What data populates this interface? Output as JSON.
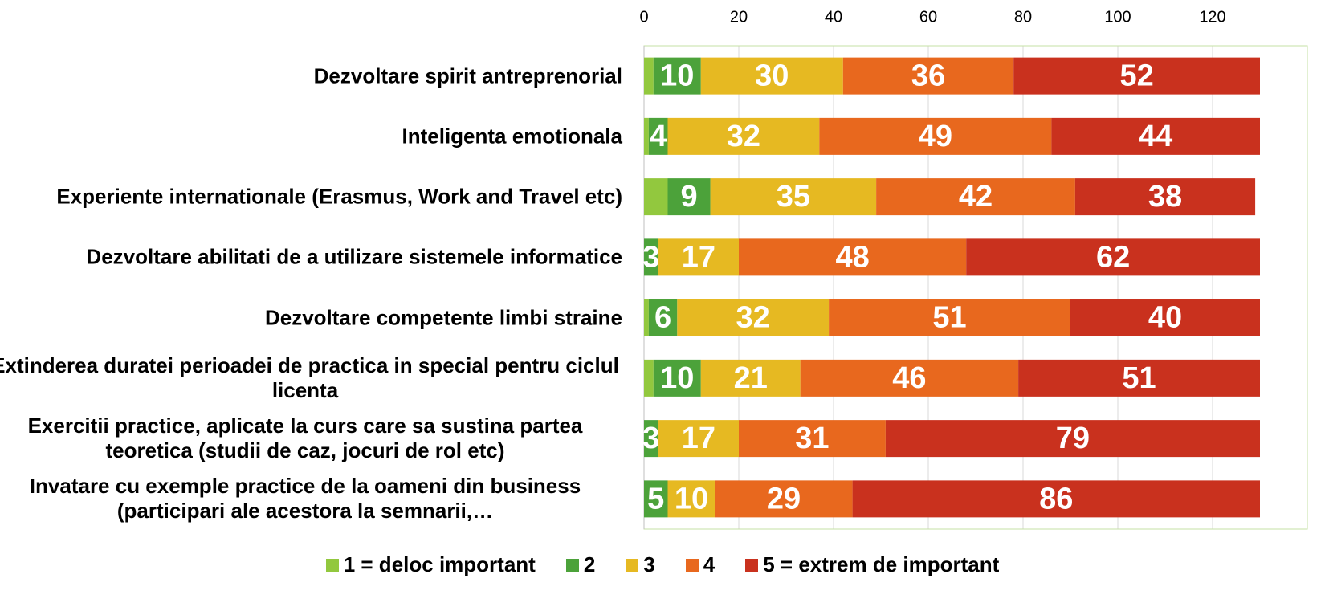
{
  "chart_data": {
    "type": "stacked_barh",
    "categories": [
      "Dezvoltare spirit antreprenorial",
      "Inteligenta emotionala",
      "Experiente internationale (Erasmus, Work and Travel etc)",
      "Dezvoltare abilitati de a utilizare sistemele informatice",
      "Dezvoltare competente limbi straine",
      "Extinderea duratei perioadei de practica in special pentru ciclul licenta",
      "Exercitii practice, aplicate la curs care sa sustina partea teoretica (studii de caz, jocuri de rol etc)",
      "Invatare cu exemple practice de la oameni din business (participari ale acestora la semnarii,…"
    ],
    "series": [
      {
        "name": "1 = deloc important",
        "color": "#92c83e",
        "values": [
          2,
          1,
          5,
          0,
          1,
          2,
          0,
          0
        ],
        "show_labels": false
      },
      {
        "name": "2",
        "color": "#4ca23a",
        "values": [
          10,
          4,
          9,
          3,
          6,
          10,
          3,
          5
        ],
        "show_labels": true
      },
      {
        "name": "3",
        "color": "#e6b922",
        "values": [
          30,
          32,
          35,
          17,
          32,
          21,
          17,
          10
        ],
        "show_labels": true
      },
      {
        "name": "4",
        "color": "#e8681e",
        "values": [
          36,
          49,
          42,
          48,
          51,
          46,
          31,
          29
        ],
        "show_labels": true
      },
      {
        "name": "5 = extrem de important",
        "color": "#c9311e",
        "values": [
          52,
          44,
          38,
          62,
          40,
          51,
          79,
          86
        ],
        "show_labels": true
      }
    ],
    "xlim": [
      0,
      140
    ],
    "xticks": [
      0,
      20,
      40,
      60,
      80,
      100,
      120
    ],
    "grid": true,
    "legend": "bottom"
  }
}
